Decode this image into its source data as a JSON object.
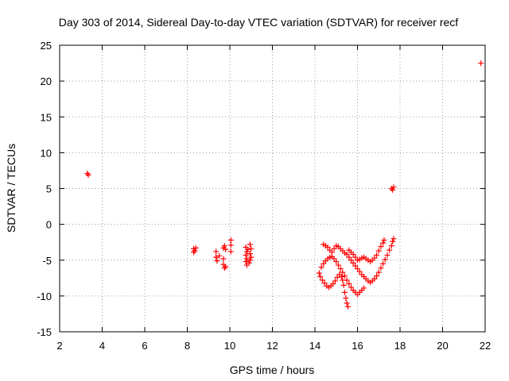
{
  "chart_data": {
    "type": "scatter",
    "title": "Day 303 of 2014, Sidereal Day-to-day VTEC variation (SDTVAR) for receiver recf",
    "xlabel": "GPS time / hours",
    "ylabel": "SDTVAR / TECUs",
    "xlim": [
      2,
      22
    ],
    "ylim": [
      -15,
      25
    ],
    "x_ticks": [
      2,
      4,
      6,
      8,
      10,
      12,
      14,
      16,
      18,
      20,
      22
    ],
    "y_ticks": [
      -15,
      -10,
      -5,
      0,
      5,
      10,
      15,
      20,
      25
    ],
    "grid": true,
    "marker": "plus",
    "color": "#ff0000",
    "series": [
      {
        "name": "SDTVAR",
        "points": [
          [
            3.3,
            7.1
          ],
          [
            3.35,
            6.9
          ],
          [
            8.3,
            -3.4
          ],
          [
            8.35,
            -3.7
          ],
          [
            8.4,
            -3.3
          ],
          [
            8.3,
            -3.9
          ],
          [
            9.35,
            -3.8
          ],
          [
            9.35,
            -4.6
          ],
          [
            9.4,
            -5.1
          ],
          [
            9.5,
            -4.4
          ],
          [
            9.7,
            -3.3
          ],
          [
            9.75,
            -3.0
          ],
          [
            9.8,
            -3.5
          ],
          [
            9.7,
            -4.8
          ],
          [
            9.7,
            -5.6
          ],
          [
            9.8,
            -5.9
          ],
          [
            9.75,
            -6.1
          ],
          [
            10.05,
            -2.2
          ],
          [
            10.05,
            -2.9
          ],
          [
            10.05,
            -3.8
          ],
          [
            10.75,
            -3.2
          ],
          [
            10.8,
            -3.8
          ],
          [
            10.75,
            -4.3
          ],
          [
            10.8,
            -4.8
          ],
          [
            10.75,
            -5.2
          ],
          [
            10.8,
            -5.7
          ],
          [
            10.85,
            -3.5
          ],
          [
            10.95,
            -2.8
          ],
          [
            11.0,
            -3.4
          ],
          [
            10.95,
            -4.1
          ],
          [
            11.0,
            -4.6
          ],
          [
            10.95,
            -5.0
          ],
          [
            10.9,
            -5.4
          ],
          [
            14.2,
            -6.8
          ],
          [
            14.25,
            -7.3
          ],
          [
            14.35,
            -7.8
          ],
          [
            14.45,
            -8.2
          ],
          [
            14.55,
            -8.6
          ],
          [
            14.65,
            -8.8
          ],
          [
            14.75,
            -8.6
          ],
          [
            14.85,
            -8.3
          ],
          [
            14.95,
            -7.9
          ],
          [
            15.05,
            -7.4
          ],
          [
            15.15,
            -7.0
          ],
          [
            15.25,
            -7.3
          ],
          [
            15.3,
            -7.8
          ],
          [
            15.35,
            -8.5
          ],
          [
            15.4,
            -9.5
          ],
          [
            15.45,
            -10.3
          ],
          [
            15.5,
            -11.0
          ],
          [
            15.55,
            -11.5
          ],
          [
            14.3,
            -6.0
          ],
          [
            14.4,
            -5.5
          ],
          [
            14.5,
            -5.1
          ],
          [
            14.6,
            -4.8
          ],
          [
            14.7,
            -4.6
          ],
          [
            14.8,
            -4.5
          ],
          [
            14.9,
            -4.8
          ],
          [
            15.0,
            -5.2
          ],
          [
            15.1,
            -5.7
          ],
          [
            15.2,
            -6.2
          ],
          [
            15.3,
            -6.7
          ],
          [
            15.4,
            -7.2
          ],
          [
            15.5,
            -7.8
          ],
          [
            15.6,
            -8.3
          ],
          [
            15.7,
            -8.8
          ],
          [
            15.8,
            -9.2
          ],
          [
            15.9,
            -9.5
          ],
          [
            16.0,
            -9.8
          ],
          [
            16.1,
            -9.5
          ],
          [
            16.2,
            -9.2
          ],
          [
            16.3,
            -8.9
          ],
          [
            14.4,
            -2.8
          ],
          [
            14.5,
            -3.0
          ],
          [
            14.6,
            -3.2
          ],
          [
            14.7,
            -3.6
          ],
          [
            14.8,
            -3.9
          ],
          [
            14.9,
            -3.4
          ],
          [
            15.0,
            -3.0
          ],
          [
            15.1,
            -3.1
          ],
          [
            15.2,
            -3.4
          ],
          [
            15.3,
            -3.7
          ],
          [
            15.4,
            -4.0
          ],
          [
            15.5,
            -4.2
          ],
          [
            15.6,
            -4.6
          ],
          [
            15.7,
            -5.0
          ],
          [
            15.8,
            -5.4
          ],
          [
            15.9,
            -5.8
          ],
          [
            16.0,
            -6.2
          ],
          [
            16.1,
            -6.6
          ],
          [
            16.2,
            -7.0
          ],
          [
            16.3,
            -7.3
          ],
          [
            16.4,
            -7.6
          ],
          [
            16.5,
            -7.9
          ],
          [
            16.6,
            -8.1
          ],
          [
            16.7,
            -7.9
          ],
          [
            16.8,
            -7.6
          ],
          [
            16.9,
            -7.2
          ],
          [
            17.0,
            -6.7
          ],
          [
            17.1,
            -6.1
          ],
          [
            17.2,
            -5.5
          ],
          [
            17.3,
            -4.9
          ],
          [
            17.4,
            -4.3
          ],
          [
            17.5,
            -3.6
          ],
          [
            17.6,
            -3.0
          ],
          [
            17.65,
            -2.4
          ],
          [
            17.7,
            -2.0
          ],
          [
            15.6,
            -3.6
          ],
          [
            15.7,
            -3.9
          ],
          [
            15.8,
            -4.2
          ],
          [
            15.9,
            -4.6
          ],
          [
            16.0,
            -5.0
          ],
          [
            16.1,
            -4.9
          ],
          [
            16.2,
            -4.7
          ],
          [
            16.3,
            -4.6
          ],
          [
            16.4,
            -4.8
          ],
          [
            16.5,
            -5.0
          ],
          [
            16.6,
            -5.2
          ],
          [
            16.7,
            -5.0
          ],
          [
            16.8,
            -4.7
          ],
          [
            16.9,
            -4.3
          ],
          [
            17.0,
            -3.7
          ],
          [
            17.1,
            -3.1
          ],
          [
            17.2,
            -2.6
          ],
          [
            17.25,
            -2.2
          ],
          [
            17.6,
            5.0
          ],
          [
            17.65,
            4.8
          ],
          [
            17.7,
            5.2
          ],
          [
            21.8,
            22.5
          ]
        ]
      }
    ]
  }
}
